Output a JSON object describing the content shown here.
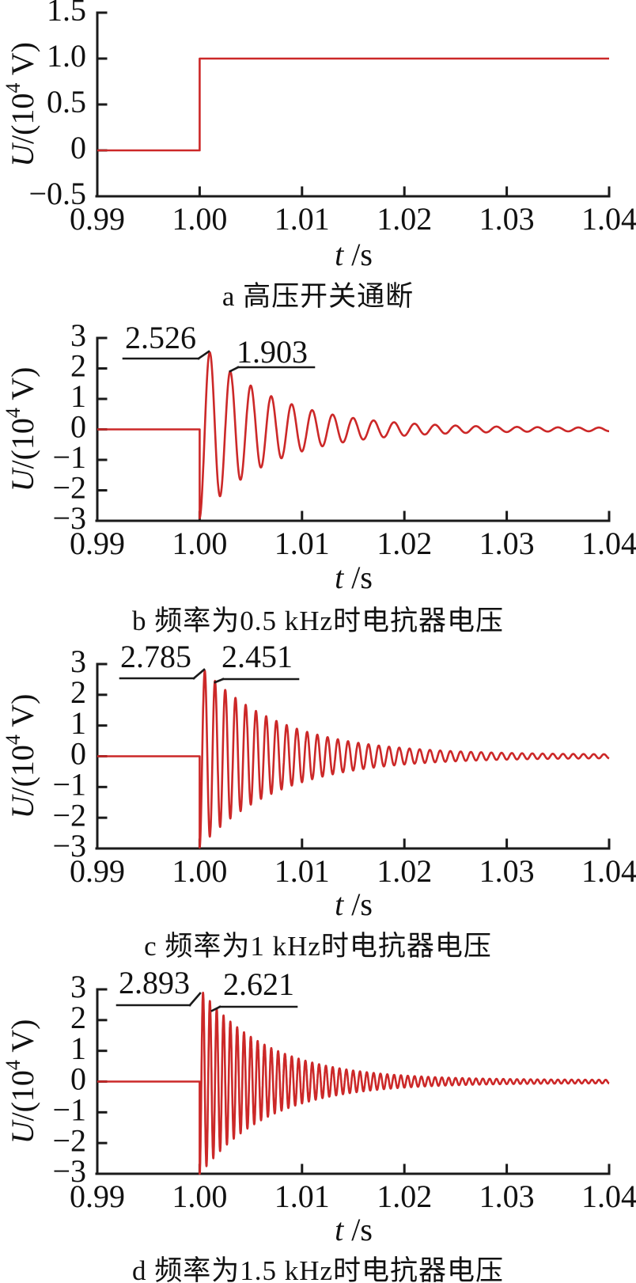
{
  "colors": {
    "curve_red": "#cc2828",
    "axis_black": "#1a1a1a",
    "text_black": "#111111"
  },
  "axis_labels": {
    "x_italic": "t",
    "x_rest": "/s",
    "y_prefix_italic": "U",
    "y_mid": "/(10",
    "y_superscript": "4",
    "y_suffix": " V)"
  },
  "chart_data": [
    {
      "type": "line",
      "panel": "a",
      "title": "a 高压开关通断",
      "xlabel": "t/s",
      "ylabel": "U/(10^4 V)",
      "xlim": [
        0.99,
        1.04
      ],
      "ylim": [
        -0.5,
        1.5
      ],
      "xticks": [
        "0.99",
        "1.00",
        "1.01",
        "1.02",
        "1.03",
        "1.04"
      ],
      "xtick_values": [
        0.99,
        1.0,
        1.01,
        1.02,
        1.03,
        1.04
      ],
      "yticks": [
        "1.5",
        "1.0",
        "0.5",
        "0",
        "−0.5"
      ],
      "ytick_values": [
        1.5,
        1.0,
        0.5,
        0,
        -0.5
      ],
      "grid": false,
      "series_kind": "step",
      "x": [
        0.99,
        1.0,
        1.0,
        1.04
      ],
      "y": [
        0,
        0,
        1.0,
        1.0
      ],
      "annotations": []
    },
    {
      "type": "line",
      "panel": "b",
      "title": "b 频率为0.5 kHz时电抗器电压",
      "xlabel": "t/s",
      "ylabel": "U/(10^4 V)",
      "xlim": [
        0.99,
        1.04
      ],
      "ylim": [
        -3,
        3
      ],
      "xticks": [
        "0.99",
        "1.00",
        "1.01",
        "1.02",
        "1.03",
        "1.04"
      ],
      "xtick_values": [
        0.99,
        1.0,
        1.01,
        1.02,
        1.03,
        1.04
      ],
      "yticks": [
        "3",
        "2",
        "1",
        "0",
        "−1",
        "−2",
        "−3"
      ],
      "ytick_values": [
        3,
        2,
        1,
        0,
        -1,
        -2,
        -3
      ],
      "grid": false,
      "series_kind": "damped_oscillation",
      "signal": {
        "freq_hz": 500,
        "step_time": 1.0,
        "flat_value": 0,
        "peak1": 2.526,
        "peak2": 1.903,
        "residual_ripple": 0.05,
        "clip": 3
      },
      "annotations": [
        {
          "label": "2.526",
          "value": 2.526,
          "peak_index": 1
        },
        {
          "label": "1.903",
          "value": 1.903,
          "peak_index": 2
        }
      ]
    },
    {
      "type": "line",
      "panel": "c",
      "title": "c 频率为1 kHz时电抗器电压",
      "xlabel": "t/s",
      "ylabel": "U/(10^4 V)",
      "xlim": [
        0.99,
        1.04
      ],
      "ylim": [
        -3,
        3
      ],
      "xticks": [
        "0.99",
        "1.00",
        "1.01",
        "1.02",
        "1.03",
        "1.04"
      ],
      "xtick_values": [
        0.99,
        1.0,
        1.01,
        1.02,
        1.03,
        1.04
      ],
      "yticks": [
        "3",
        "2",
        "1",
        "0",
        "−1",
        "−2",
        "−3"
      ],
      "ytick_values": [
        3,
        2,
        1,
        0,
        -1,
        -2,
        -3
      ],
      "grid": false,
      "series_kind": "damped_oscillation",
      "signal": {
        "freq_hz": 1000,
        "step_time": 1.0,
        "flat_value": 0,
        "peak1": 2.785,
        "peak2": 2.451,
        "residual_ripple": 0.05,
        "clip": 3
      },
      "annotations": [
        {
          "label": "2.785",
          "value": 2.785,
          "peak_index": 1
        },
        {
          "label": "2.451",
          "value": 2.451,
          "peak_index": 2
        }
      ]
    },
    {
      "type": "line",
      "panel": "d",
      "title": "d 频率为1.5 kHz时电抗器电压",
      "xlabel": "t/s",
      "ylabel": "U/(10^4 V)",
      "xlim": [
        0.99,
        1.04
      ],
      "ylim": [
        -3,
        3
      ],
      "xticks": [
        "0.99",
        "1.00",
        "1.01",
        "1.02",
        "1.03",
        "1.04"
      ],
      "xtick_values": [
        0.99,
        1.0,
        1.01,
        1.02,
        1.03,
        1.04
      ],
      "yticks": [
        "3",
        "2",
        "1",
        "0",
        "−1",
        "−2",
        "−3"
      ],
      "ytick_values": [
        3,
        2,
        1,
        0,
        -1,
        -2,
        -3
      ],
      "grid": false,
      "series_kind": "damped_oscillation",
      "signal": {
        "freq_hz": 1500,
        "step_time": 1.0,
        "flat_value": 0,
        "peak1": 2.893,
        "peak2": 2.621,
        "residual_ripple": 0.05,
        "clip": 3
      },
      "annotations": [
        {
          "label": "2.893",
          "value": 2.893,
          "peak_index": 1
        },
        {
          "label": "2.621",
          "value": 2.621,
          "peak_index": 2
        }
      ]
    }
  ]
}
